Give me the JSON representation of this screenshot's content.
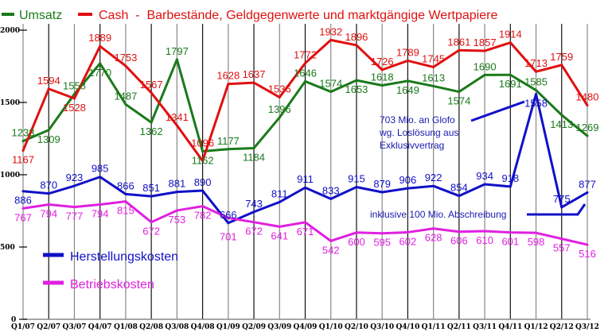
{
  "chart_data": {
    "type": "line",
    "title": "",
    "xlabel": "",
    "ylabel": "",
    "ylim": [
      0,
      2000
    ],
    "yticks": [
      0,
      500,
      1000,
      1500,
      2000
    ],
    "grid": "vertical lines at each quarter",
    "categories": [
      "Q1/07",
      "Q2/07",
      "Q3/07",
      "Q4/07",
      "Q1/08",
      "Q2/08",
      "Q3/08",
      "Q4/08",
      "Q1/09",
      "Q2/09",
      "Q3/09",
      "Q4/09",
      "Q1/10",
      "Q2/10",
      "Q3/10",
      "Q4/10",
      "Q1/11",
      "Q2/11",
      "Q3/11",
      "Q4/11",
      "Q1/12",
      "Q2/12",
      "Q3/12"
    ],
    "series": [
      {
        "name": "Umsatz",
        "color": "#1a7a1a",
        "values": [
          1233,
          1309,
          1558,
          1770,
          1487,
          1362,
          1797,
          1162,
          1177,
          1184,
          1396,
          1646,
          1574,
          1653,
          1618,
          1649,
          1613,
          1574,
          1690,
          1691,
          1585,
          1413,
          1269
        ]
      },
      {
        "name": "Cash  -  Barbestände, Geldgegenwerte und marktgängige Wertpapiere",
        "color": "#e01010",
        "values": [
          1167,
          1594,
          1528,
          1889,
          1753,
          1567,
          1341,
          1096,
          1628,
          1637,
          1536,
          1772,
          1932,
          1896,
          1726,
          1789,
          1745,
          1861,
          1857,
          1914,
          1713,
          1759,
          1480
        ]
      },
      {
        "name": "Herstellungskosten",
        "color": "#1010c8",
        "values": [
          886,
          870,
          923,
          985,
          866,
          851,
          881,
          890,
          666,
          743,
          811,
          911,
          833,
          915,
          879,
          906,
          922,
          854,
          934,
          918,
          1558,
          775,
          877
        ]
      },
      {
        "name": "Betriebskosten",
        "color": "#e020e0",
        "values": [
          767,
          794,
          777,
          794,
          815,
          672,
          753,
          782,
          701,
          672,
          641,
          671,
          542,
          600,
          595,
          602,
          628,
          606,
          610,
          601,
          598,
          557,
          516
        ]
      }
    ],
    "legend": {
      "top": [
        "Umsatz",
        "Cash  -  Barbestände, Geldgegenwerte und marktgängige Wertpapiere"
      ],
      "inside-bottom-left": [
        "Herstellungskosten",
        "Betriebskosten"
      ]
    },
    "annotations": [
      {
        "lines": [
          "703 Mio. an Glofo",
          "wg. Loslösung aus",
          "Exklusivvertrag"
        ],
        "points_to": "Q1/12"
      },
      {
        "lines": [
          "inklusive 100 Mio. Abschreibung"
        ],
        "points_to": "Q3/12"
      }
    ]
  }
}
